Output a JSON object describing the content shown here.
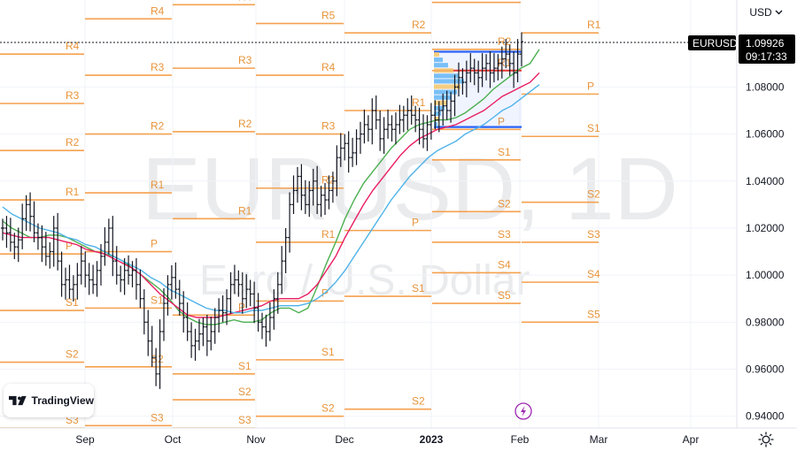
{
  "currency_selector": "USD",
  "chevron_icon": "chevron-down-icon",
  "symbol_badge": "EURUSD",
  "last_price": "1.09926",
  "countdown": "09:17:33",
  "watermark": {
    "symbol": "EURUSD, 1D",
    "description": "Euro / U.S. Dollar"
  },
  "logo_text": "TradingView",
  "colors": {
    "bars": "#131722",
    "pivot": "#f5a14f",
    "pivot_text": "#e8943a",
    "ma_fast": "#4caf50",
    "ma_mid": "#e91e63",
    "ma_slow": "#4fb3e8",
    "profile_box": "#2962ff",
    "poc": "#e53935",
    "badge": "#000000"
  },
  "chart_data": {
    "type": "ohlc",
    "symbol": "EURUSD",
    "timeframe": "1D",
    "y_ticks": [
      "1.08000",
      "1.06000",
      "1.04000",
      "1.02000",
      "1.00000",
      "0.98000",
      "0.96000",
      "0.94000"
    ],
    "x_ticks": [
      "Sep",
      "Oct",
      "Nov",
      "Dec",
      "2023",
      "Feb",
      "Mar",
      "Apr"
    ],
    "y_range": [
      0.935,
      1.117
    ],
    "last_price": 1.09926,
    "close_series": [
      1.02,
      1.018,
      1.014,
      1.012,
      1.015,
      1.024,
      1.03,
      1.025,
      1.018,
      1.016,
      1.012,
      1.008,
      1.01,
      1.02,
      1.006,
      0.996,
      0.998,
      0.994,
      0.996,
      1.0,
      1.006,
      1.0,
      0.998,
      0.996,
      1.002,
      1.008,
      1.014,
      1.02,
      1.006,
      1.0,
      0.998,
      1.002,
      1.0,
      1.002,
      0.996,
      0.99,
      0.98,
      0.972,
      0.965,
      0.958,
      0.976,
      0.988,
      0.996,
      0.999,
      0.994,
      0.988,
      0.982,
      0.976,
      0.97,
      0.972,
      0.975,
      0.978,
      0.972,
      0.976,
      0.982,
      0.985,
      0.984,
      0.99,
      0.996,
      0.998,
      0.996,
      0.99,
      0.994,
      0.992,
      0.986,
      0.98,
      0.978,
      0.976,
      0.982,
      0.99,
      0.996,
      1.006,
      1.016,
      1.03,
      1.036,
      1.042,
      1.034,
      1.03,
      1.036,
      1.04,
      1.03,
      1.034,
      1.032,
      1.036,
      1.04,
      1.05,
      1.054,
      1.056,
      1.05,
      1.052,
      1.058,
      1.06,
      1.064,
      1.062,
      1.07,
      1.066,
      1.058,
      1.062,
      1.064,
      1.062,
      1.064,
      1.066,
      1.068,
      1.07,
      1.068,
      1.066,
      1.062,
      1.058,
      1.064,
      1.068,
      1.066,
      1.07,
      1.072,
      1.07,
      1.074,
      1.08,
      1.084,
      1.082,
      1.086,
      1.088,
      1.086,
      1.084,
      1.088,
      1.09,
      1.086,
      1.088,
      1.09,
      1.092,
      1.094,
      1.09,
      1.086,
      1.094,
      1.09926
    ],
    "moving_averages": [
      {
        "color": "#4caf50",
        "values": [
          1.023,
          1.02,
          1.018,
          1.016,
          1.016,
          1.017,
          1.017,
          1.016,
          1.014,
          1.012,
          1.01,
          1.009,
          1.008,
          1.006,
          1.003,
          1.0,
          0.997,
          0.994,
          0.99,
          0.985,
          0.982,
          0.98,
          0.979,
          0.979,
          0.98,
          0.981,
          0.98,
          0.98,
          0.981,
          0.984,
          0.986,
          0.986,
          0.984,
          0.986,
          0.995,
          1.005,
          1.014,
          1.024,
          1.032,
          1.039,
          1.044,
          1.049,
          1.054,
          1.058,
          1.062,
          1.064,
          1.065,
          1.066,
          1.066,
          1.067,
          1.069,
          1.072,
          1.075,
          1.079,
          1.082,
          1.085,
          1.088,
          1.09,
          1.096
        ]
      },
      {
        "color": "#e91e63",
        "values": [
          1.018,
          1.017,
          1.016,
          1.016,
          1.016,
          1.016,
          1.015,
          1.014,
          1.013,
          1.011,
          1.01,
          1.009,
          1.007,
          1.005,
          1.003,
          1.0,
          0.996,
          0.992,
          0.989,
          0.986,
          0.983,
          0.982,
          0.982,
          0.982,
          0.983,
          0.984,
          0.985,
          0.986,
          0.987,
          0.989,
          0.99,
          0.99,
          0.99,
          0.992,
          0.996,
          1.002,
          1.008,
          1.016,
          1.023,
          1.03,
          1.036,
          1.041,
          1.046,
          1.051,
          1.055,
          1.058,
          1.06,
          1.062,
          1.063,
          1.064,
          1.066,
          1.068,
          1.07,
          1.073,
          1.076,
          1.078,
          1.08,
          1.082,
          1.086
        ]
      },
      {
        "color": "#4fb3e8",
        "values": [
          1.029,
          1.026,
          1.024,
          1.022,
          1.02,
          1.019,
          1.018,
          1.016,
          1.015,
          1.013,
          1.012,
          1.01,
          1.008,
          1.006,
          1.004,
          1.002,
          0.999,
          0.997,
          0.994,
          0.992,
          0.99,
          0.988,
          0.986,
          0.985,
          0.985,
          0.984,
          0.984,
          0.985,
          0.985,
          0.986,
          0.987,
          0.987,
          0.987,
          0.988,
          0.99,
          0.993,
          0.997,
          1.002,
          1.008,
          1.014,
          1.02,
          1.026,
          1.032,
          1.037,
          1.042,
          1.046,
          1.05,
          1.053,
          1.055,
          1.057,
          1.06,
          1.062,
          1.064,
          1.067,
          1.07,
          1.072,
          1.075,
          1.078,
          1.081
        ]
      }
    ],
    "pivot_periods": [
      {
        "levels": [
          {
            "label": "R5",
            "value": 1.128
          },
          {
            "label": "R4",
            "value": 1.094
          },
          {
            "label": "R3",
            "value": 1.073
          },
          {
            "label": "R2",
            "value": 1.053
          },
          {
            "label": "R1",
            "value": 1.032
          },
          {
            "label": "P",
            "value": 1.009
          },
          {
            "label": "S1",
            "value": 0.985
          },
          {
            "label": "S2",
            "value": 0.963
          },
          {
            "label": "S3",
            "value": 0.935
          }
        ]
      },
      {
        "levels": [
          {
            "label": "R5",
            "value": 1.134
          },
          {
            "label": "R4",
            "value": 1.109
          },
          {
            "label": "R3",
            "value": 1.085
          },
          {
            "label": "R2",
            "value": 1.06
          },
          {
            "label": "R1",
            "value": 1.035
          },
          {
            "label": "P",
            "value": 1.01
          },
          {
            "label": "S1",
            "value": 0.986
          },
          {
            "label": "S2",
            "value": 0.961
          },
          {
            "label": "S3",
            "value": 0.936
          }
        ]
      },
      {
        "levels": [
          {
            "label": "R5",
            "value": 1.128
          },
          {
            "label": "R4",
            "value": 1.115
          },
          {
            "label": "R3",
            "value": 1.088
          },
          {
            "label": "R2",
            "value": 1.061
          },
          {
            "label": "R1",
            "value": 1.024
          },
          {
            "label": "P",
            "value": 0.983
          },
          {
            "label": "S1",
            "value": 0.958
          },
          {
            "label": "S2",
            "value": 0.947
          },
          {
            "label": "S3",
            "value": 0.935
          }
        ]
      },
      {
        "levels": [
          {
            "label": "R5",
            "value": 1.107
          },
          {
            "label": "R4",
            "value": 1.085
          },
          {
            "label": "R3",
            "value": 1.06
          },
          {
            "label": "R2",
            "value": 1.037
          },
          {
            "label": "R1",
            "value": 1.014
          },
          {
            "label": "P",
            "value": 0.989
          },
          {
            "label": "S1",
            "value": 0.964
          },
          {
            "label": "S2",
            "value": 0.94
          }
        ]
      },
      {
        "levels": [
          {
            "label": "R3",
            "value": 1.127
          },
          {
            "label": "R2",
            "value": 1.103
          },
          {
            "label": "R1",
            "value": 1.07
          },
          {
            "label": "P",
            "value": 1.019
          },
          {
            "label": "S1",
            "value": 0.991
          },
          {
            "label": "S2",
            "value": 0.943
          }
        ]
      },
      {
        "levels": [
          {
            "label": "R3",
            "value": 1.116
          },
          {
            "label": "R2",
            "value": 1.096
          },
          {
            "label": "R1",
            "value": 1.087
          },
          {
            "label": "P",
            "value": 1.062
          },
          {
            "label": "S1",
            "value": 1.049
          },
          {
            "label": "S2",
            "value": 1.027
          },
          {
            "label": "S3",
            "value": 1.014
          },
          {
            "label": "S4",
            "value": 1.001
          },
          {
            "label": "S5",
            "value": 0.988
          }
        ]
      },
      {
        "levels": [
          {
            "label": "R1",
            "value": 1.103
          },
          {
            "label": "P",
            "value": 1.077
          },
          {
            "label": "S1",
            "value": 1.059
          },
          {
            "label": "S2",
            "value": 1.031
          },
          {
            "label": "S3",
            "value": 1.014
          },
          {
            "label": "S4",
            "value": 0.997
          },
          {
            "label": "S5",
            "value": 0.98
          }
        ]
      }
    ],
    "volume_profile": {
      "high": 1.095,
      "low": 1.063,
      "poc": 1.087
    }
  }
}
